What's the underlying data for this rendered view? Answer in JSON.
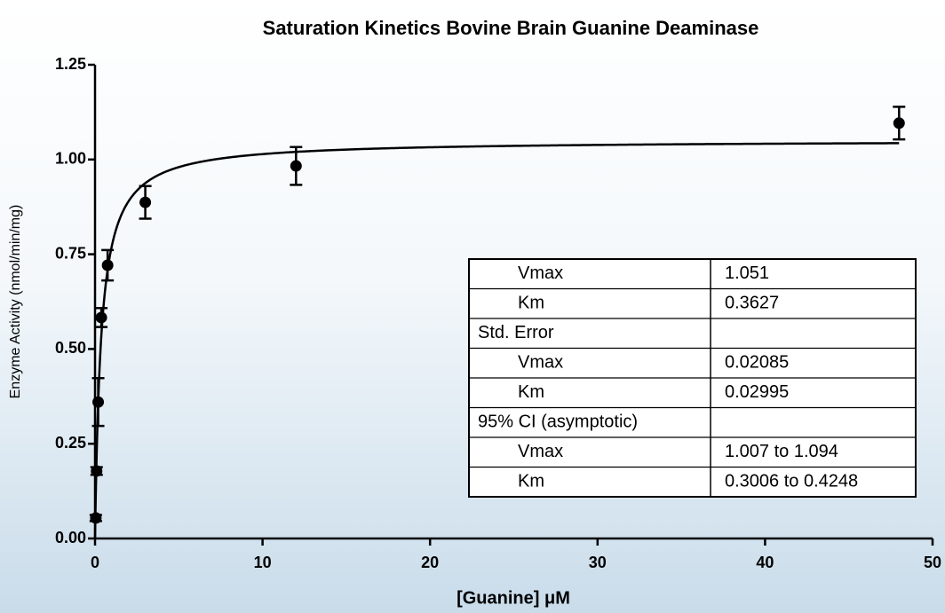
{
  "chart_data": {
    "type": "scatter",
    "title": "Saturation Kinetics Bovine Brain Guanine Deaminase",
    "x_label": "[Guanine] μM",
    "y_label": "Enzyme Activity (nmol/min/mg)",
    "x": [
      0.047,
      0.094,
      0.1875,
      0.375,
      0.75,
      3,
      12,
      48
    ],
    "values": [
      0.054,
      0.178,
      0.36,
      0.583,
      0.721,
      0.887,
      0.983,
      1.096
    ],
    "errors": [
      0.008,
      0.01,
      0.063,
      0.025,
      0.04,
      0.043,
      0.05,
      0.043
    ],
    "color": "#000000",
    "xlim": [
      0,
      50
    ],
    "xticks": [
      0,
      10,
      20,
      30,
      40,
      50
    ],
    "ylim": [
      0,
      1.25
    ],
    "yticks": [
      {
        "value": 0,
        "label": "0.00"
      },
      {
        "value": 0.25,
        "label": "0.25"
      },
      {
        "value": 0.5,
        "label": "0.50"
      },
      {
        "value": 0.75,
        "label": "0.75"
      },
      {
        "value": 1,
        "label": "1.00"
      },
      {
        "value": 1.25,
        "label": "1.25"
      }
    ],
    "fit_table": [
      {
        "label": "Vmax",
        "value": 1.051
      },
      {
        "label": "Km",
        "value": 0.3627
      },
      {
        "label": "Std. Error"
      },
      {
        "label": "Vmax",
        "value": 0.02085
      },
      {
        "label": "Km",
        "value": 0.02995
      },
      {
        "label": "95% CI (asymptotic)"
      },
      {
        "label": "Vmax",
        "value": "1.007 to 1.094"
      },
      {
        "label": "Km",
        "value": "0.3006 to 0.4248"
      }
    ]
  }
}
